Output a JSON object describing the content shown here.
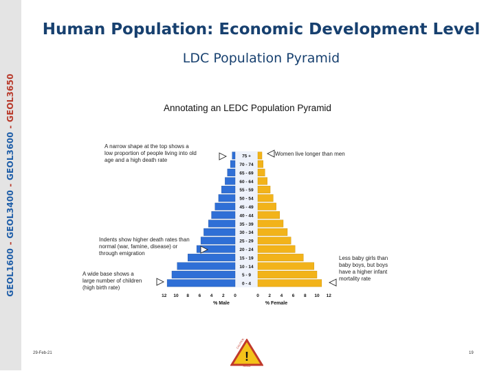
{
  "sidebar": {
    "parts": [
      {
        "text": "GEOL1600",
        "color": "#1f5ea8"
      },
      {
        "text": " - ",
        "color": "#b83a2b"
      },
      {
        "text": "GEOL3400",
        "color": "#1f5ea8"
      },
      {
        "text": " - ",
        "color": "#b83a2b"
      },
      {
        "text": "GEOL3600",
        "color": "#1f5ea8"
      },
      {
        "text": " - ",
        "color": "#b83a2b"
      },
      {
        "text": "GEOL3650",
        "color": "#b83a2b"
      }
    ]
  },
  "slide": {
    "title": "Human Population: Economic Development Level",
    "subtitle": "LDC Population Pyramid"
  },
  "footer": {
    "date": "29-Feb-21",
    "page": "19"
  },
  "chart_data": {
    "type": "bar",
    "orientation": "horizontal-pyramid",
    "title": "Annotating an LEDC Population Pyramid",
    "categories": [
      "0 - 4",
      "5 - 9",
      "10 - 14",
      "15 - 19",
      "20 - 24",
      "25 - 29",
      "30 - 34",
      "35 - 39",
      "40 - 44",
      "45 - 49",
      "50 - 54",
      "55 - 59",
      "60 - 64",
      "65 - 69",
      "70 - 74",
      "75 +"
    ],
    "series": [
      {
        "name": "Male",
        "values": [
          11.5,
          10.7,
          9.8,
          8.0,
          6.5,
          5.8,
          5.3,
          4.5,
          4.0,
          3.4,
          2.8,
          2.3,
          1.7,
          1.3,
          0.8,
          0.5
        ],
        "color": "#2f6fd6"
      },
      {
        "name": "Female",
        "values": [
          10.8,
          10.0,
          9.5,
          7.7,
          6.3,
          5.6,
          5.0,
          4.3,
          3.7,
          3.1,
          2.6,
          2.1,
          1.6,
          1.2,
          0.9,
          0.7
        ],
        "color": "#f2b31a"
      }
    ],
    "xlabel_left": "% Male",
    "xlabel_right": "% Female",
    "xticks_left": [
      "12",
      "10",
      "8",
      "6",
      "4",
      "2",
      "0"
    ],
    "xticks_right": [
      "0",
      "2",
      "4",
      "6",
      "8",
      "10",
      "12"
    ],
    "xlim": [
      0,
      12
    ],
    "annotations": [
      {
        "side": "left",
        "lines": [
          "A narrow shape at the top shows a",
          "low proportion of people living into old",
          "age and a high death rate"
        ]
      },
      {
        "side": "left",
        "lines": [
          "Indents show higher death rates than",
          "normal (war, famine, disease) or",
          "through emigration"
        ]
      },
      {
        "side": "left",
        "lines": [
          "A wide base shows a",
          "large number of children",
          "(high birth rate)"
        ]
      },
      {
        "side": "right",
        "lines": [
          "Women live longer than men"
        ]
      },
      {
        "side": "right",
        "lines": [
          "Less baby girls than",
          "baby boys, but boys",
          "have a higher infant",
          "mortality rate"
        ]
      }
    ]
  },
  "logo": {
    "text_top": "CAUTION",
    "text_bottom": "READ"
  }
}
